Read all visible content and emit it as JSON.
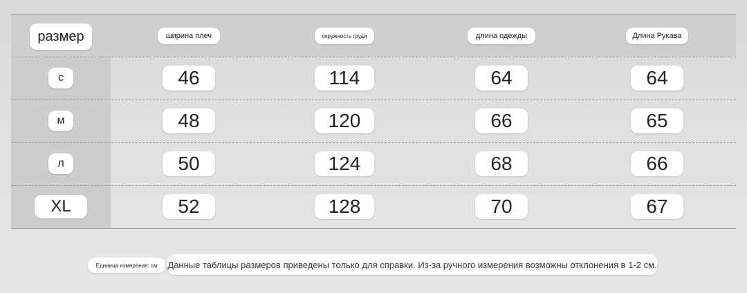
{
  "table": {
    "header": [
      "размер",
      "ширина плеч",
      "окружность груди",
      "длина одежды",
      "Длина Рукава"
    ],
    "rows": [
      [
        "с",
        46,
        114,
        64,
        64
      ],
      [
        "м",
        48,
        120,
        66,
        65
      ],
      [
        "л",
        50,
        124,
        68,
        66
      ],
      [
        "XL",
        52,
        128,
        70,
        67
      ]
    ]
  },
  "footer": {
    "unit": "Единица измерения: см",
    "note": "Данные таблицы размеров приведены только для справки. Из-за ручного измерения возможны отклонения в 1-2 см."
  }
}
